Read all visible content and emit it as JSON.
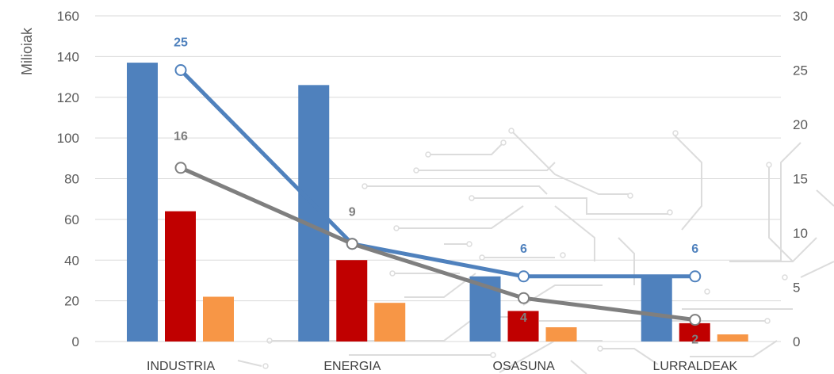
{
  "chart_data": {
    "type": "bar",
    "categories": [
      "INDUSTRIA",
      "ENERGIA",
      "OSASUNA",
      "LURRALDEAK"
    ],
    "ylabel": "Milioiak",
    "ylim": [
      0,
      160
    ],
    "yticks": [
      0,
      20,
      40,
      60,
      80,
      100,
      120,
      140,
      160
    ],
    "y2lim": [
      0,
      30
    ],
    "y2ticks": [
      0,
      5,
      10,
      15,
      20,
      25,
      30
    ],
    "grid": true,
    "bar_series": [
      {
        "values": [
          137,
          126,
          32,
          32
        ],
        "color": "#4f81bd"
      },
      {
        "values": [
          64,
          40,
          15,
          9
        ],
        "color": "#c00000"
      },
      {
        "values": [
          22,
          19,
          7,
          3.5
        ],
        "color": "#f79646"
      }
    ],
    "line_series": [
      {
        "values": [
          25,
          9,
          6,
          6
        ],
        "color": "#4f81bd",
        "axis": "secondary",
        "labels": [
          "25",
          "",
          "6",
          "6"
        ]
      },
      {
        "values": [
          16,
          9,
          4,
          2
        ],
        "color": "#7f7f7f",
        "axis": "secondary",
        "labels": [
          "16",
          "9",
          "4",
          "2"
        ]
      }
    ]
  }
}
